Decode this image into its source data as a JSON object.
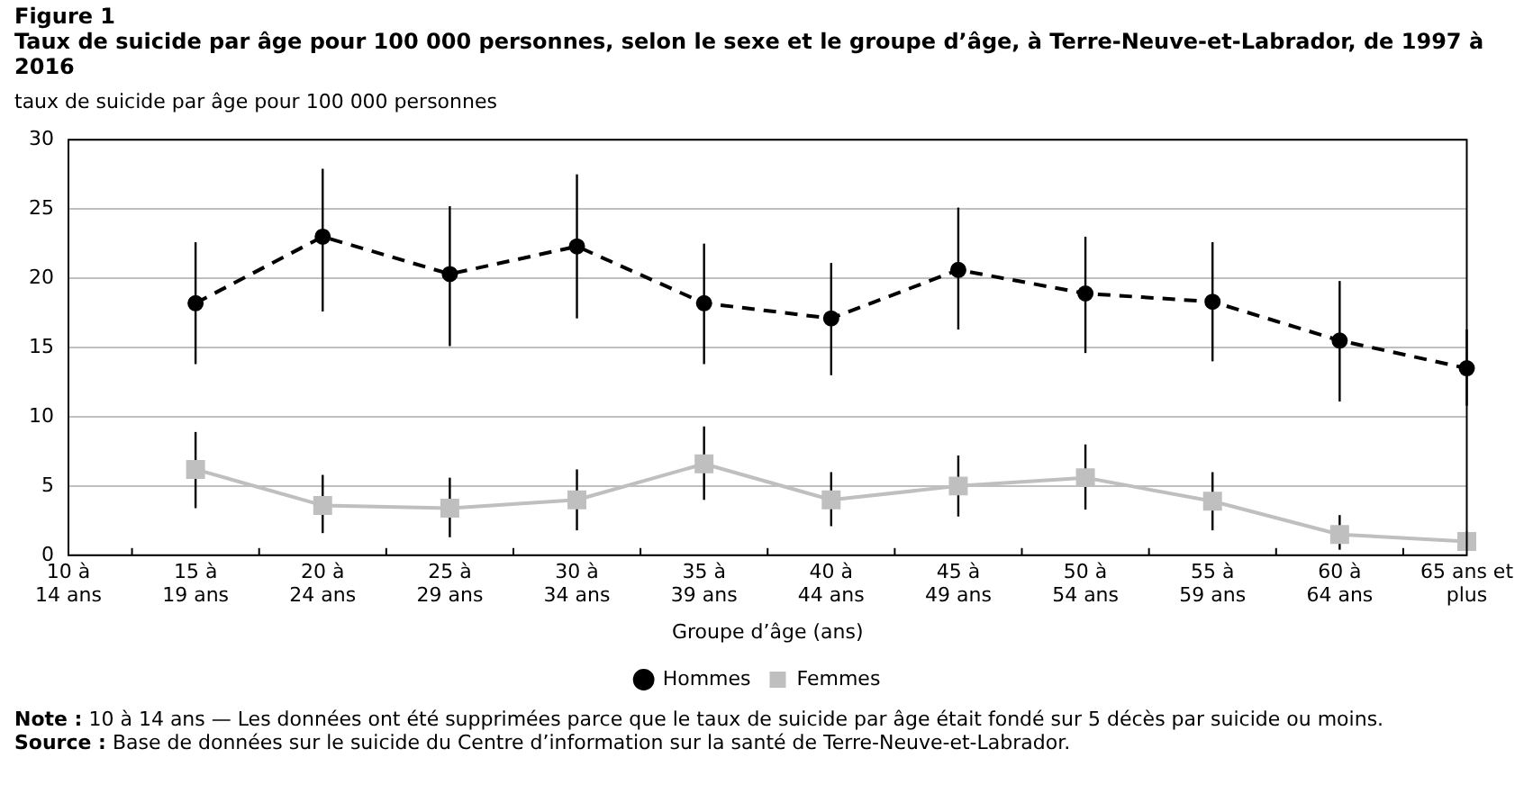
{
  "chart_data": {
    "type": "line",
    "title": "Figure 1",
    "subtitle": "Taux de suicide par âge pour 100 000 personnes, selon le sexe et le groupe d’âge, à Terre-Neuve-et-Labrador, de 1997 à 2016",
    "ylabel": "taux de suicide par âge pour 100 000 personnes",
    "xlabel": "Groupe d’âge (ans)",
    "categories": [
      "10 à\n14 ans",
      "15 à\n19 ans",
      "20 à\n24 ans",
      "25 à\n29 ans",
      "30 à\n34 ans",
      "35 à\n39 ans",
      "40 à\n44 ans",
      "45 à\n49 ans",
      "50 à\n54 ans",
      "55 à\n59 ans",
      "60 à\n64 ans",
      "65 ans et\nplus"
    ],
    "series": [
      {
        "name": "Hommes",
        "color": "#000000",
        "marker": "circle",
        "line_style": "dashed",
        "values": [
          null,
          18.2,
          23.0,
          20.3,
          22.3,
          18.2,
          17.1,
          20.6,
          18.9,
          18.3,
          15.5,
          13.5
        ],
        "errors": [
          null,
          [
            13.8,
            22.6
          ],
          [
            17.6,
            27.9
          ],
          [
            15.1,
            25.2
          ],
          [
            17.1,
            27.5
          ],
          [
            13.8,
            22.5
          ],
          [
            13.0,
            21.1
          ],
          [
            16.3,
            25.1
          ],
          [
            14.6,
            23.0
          ],
          [
            14.0,
            22.6
          ],
          [
            11.1,
            19.8
          ],
          [
            10.8,
            16.3
          ]
        ]
      },
      {
        "name": "Femmes",
        "color": "#bfbfbf",
        "marker": "square",
        "line_style": "solid",
        "values": [
          null,
          6.2,
          3.6,
          3.4,
          4.0,
          6.6,
          4.0,
          5.0,
          5.6,
          3.9,
          1.5,
          1.0
        ],
        "errors": [
          null,
          [
            3.4,
            8.9
          ],
          [
            1.6,
            5.8
          ],
          [
            1.3,
            5.6
          ],
          [
            1.8,
            6.2
          ],
          [
            4.0,
            9.3
          ],
          [
            2.1,
            6.0
          ],
          [
            2.8,
            7.2
          ],
          [
            3.3,
            8.0
          ],
          [
            1.8,
            6.0
          ],
          [
            0.4,
            2.9
          ],
          [
            0.4,
            1.7
          ]
        ]
      }
    ],
    "ylim": [
      0,
      30
    ],
    "yticks": [
      0,
      5,
      10,
      15,
      20,
      25,
      30
    ],
    "grid": "y",
    "legend": "bottom",
    "annotations": [
      "Note : 10 à 14 ans — Les données ont été supprimées parce que le taux de suicide par âge était fondé sur 5 décès par suicide ou moins.",
      "Source : Base de données sur le suicide du Centre d’information sur la santé de Terre-Neuve-et-Labrador."
    ]
  }
}
